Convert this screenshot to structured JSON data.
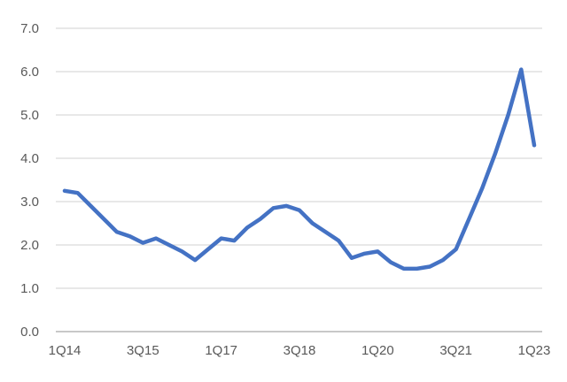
{
  "chart_data": {
    "type": "line",
    "title": "",
    "xlabel": "",
    "ylabel": "",
    "x": [
      "1Q14",
      "2Q14",
      "3Q14",
      "4Q14",
      "1Q15",
      "2Q15",
      "3Q15",
      "4Q15",
      "1Q16",
      "2Q16",
      "3Q16",
      "4Q16",
      "1Q17",
      "2Q17",
      "3Q17",
      "4Q17",
      "1Q18",
      "2Q18",
      "3Q18",
      "4Q18",
      "1Q19",
      "2Q19",
      "3Q19",
      "4Q19",
      "1Q20",
      "2Q20",
      "3Q20",
      "4Q20",
      "1Q21",
      "2Q21",
      "3Q21",
      "4Q21",
      "1Q22",
      "2Q22",
      "3Q22",
      "4Q22",
      "1Q23"
    ],
    "values": [
      3.25,
      3.2,
      2.9,
      2.6,
      2.3,
      2.2,
      2.05,
      2.15,
      2.0,
      1.85,
      1.65,
      1.9,
      2.15,
      2.1,
      2.4,
      2.6,
      2.85,
      2.9,
      2.8,
      2.5,
      2.3,
      2.1,
      1.7,
      1.8,
      1.85,
      1.6,
      1.45,
      1.45,
      1.5,
      1.65,
      1.9,
      2.6,
      3.3,
      4.1,
      5.0,
      6.05,
      4.3
    ],
    "x_tick_every": 6,
    "x_tick_labels": [
      "1Q14",
      "3Q15",
      "1Q17",
      "3Q18",
      "1Q20",
      "3Q21",
      "1Q23"
    ],
    "y_ticks": [
      0,
      1,
      2,
      3,
      4,
      5,
      6,
      7
    ],
    "y_tick_labels": [
      "0.0",
      "1.0",
      "2.0",
      "3.0",
      "4.0",
      "5.0",
      "6.0",
      "7.0"
    ],
    "ylim": [
      0,
      7
    ],
    "grid": true,
    "legend_position": "none",
    "line_color": "#4472C4",
    "gridline_color": "#D9D9D9",
    "axis_line_color": "#C8C8C8",
    "tick_label_color": "#595959",
    "background_color": "#FFFFFF"
  }
}
